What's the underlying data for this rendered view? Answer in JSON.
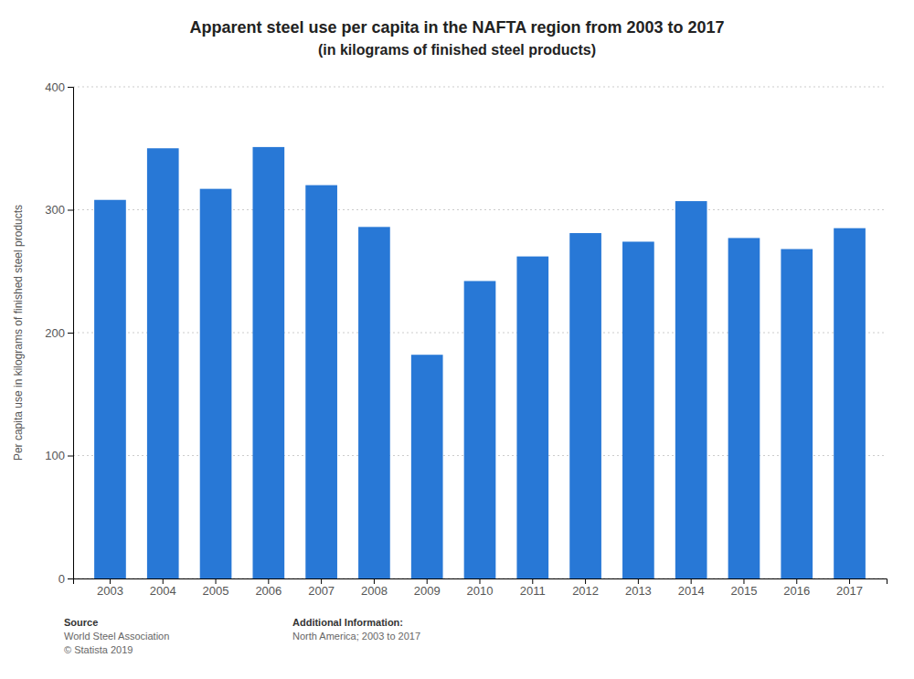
{
  "chart_data": {
    "type": "bar",
    "title": "Apparent steel use per capita in the NAFTA region from 2003 to 2017",
    "subtitle": "(in kilograms of finished steel products)",
    "ylabel": "Per capita use in kilograms of finished steel products",
    "categories": [
      "2003",
      "2004",
      "2005",
      "2006",
      "2007",
      "2008",
      "2009",
      "2010",
      "2011",
      "2012",
      "2013",
      "2014",
      "2015",
      "2016",
      "2017"
    ],
    "values": [
      308,
      350,
      317,
      351,
      320,
      286,
      182,
      242,
      262,
      281,
      274,
      307,
      277,
      268,
      285
    ],
    "color": "#2878d6",
    "ylim": [
      0,
      400
    ],
    "yticks": [
      0,
      100,
      200,
      300,
      400
    ],
    "grid": true,
    "annotations": [
      [
        "Source",
        "World Steel Association",
        "© Statista 2019"
      ],
      [
        "Additional Information:",
        "North America; 2003 to 2017"
      ]
    ]
  }
}
